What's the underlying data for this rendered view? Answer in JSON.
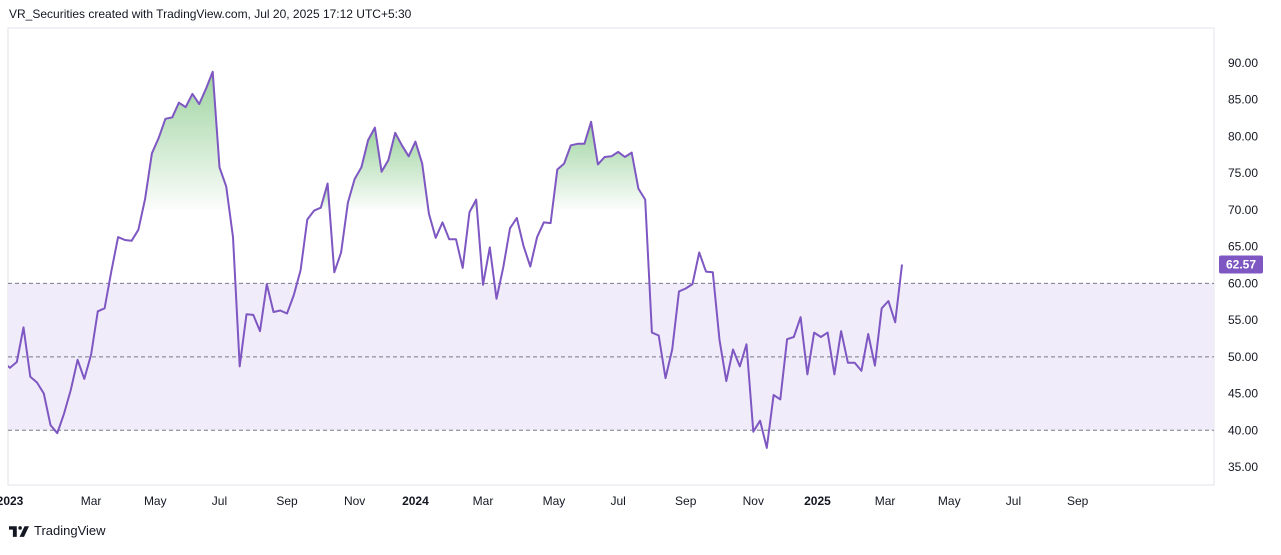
{
  "header": {
    "attribution": "VR_Securities created with TradingView.com, Jul 20, 2025 17:12 UTC+5:30"
  },
  "footer": {
    "brand": "TradingView"
  },
  "colors": {
    "line": "#7e57c2",
    "band_fill": "#f1ecf9",
    "overbought_fill": "#4caf50",
    "level_line": "#787b86",
    "grid_border": "#e0e3eb",
    "last_value_bg": "#7e57c2",
    "text": "#131722"
  },
  "chart_data": {
    "type": "line",
    "title": "",
    "xlabel": "",
    "ylabel": "",
    "ylim": [
      33,
      94
    ],
    "y_ticks": [
      "35.00",
      "40.00",
      "45.00",
      "50.00",
      "55.00",
      "60.00",
      "65.00",
      "70.00",
      "75.00",
      "80.00",
      "85.00",
      "90.00"
    ],
    "levels": [
      40,
      50,
      60
    ],
    "band": [
      40,
      60
    ],
    "overbought_threshold": 70,
    "last_value": 62.57,
    "last_value_label": "62.57",
    "x_range": [
      0,
      173
    ],
    "x_ticks": [
      {
        "label": "2023",
        "x": 0,
        "bold": true
      },
      {
        "label": "Mar",
        "x": 12,
        "bold": false
      },
      {
        "label": "May",
        "x": 21.5,
        "bold": false
      },
      {
        "label": "Jul",
        "x": 31,
        "bold": false
      },
      {
        "label": "Sep",
        "x": 41,
        "bold": false
      },
      {
        "label": "Nov",
        "x": 51,
        "bold": false
      },
      {
        "label": "2024",
        "x": 60,
        "bold": true
      },
      {
        "label": "Mar",
        "x": 70,
        "bold": false
      },
      {
        "label": "May",
        "x": 80.5,
        "bold": false
      },
      {
        "label": "Jul",
        "x": 90,
        "bold": false
      },
      {
        "label": "Sep",
        "x": 100,
        "bold": false
      },
      {
        "label": "Nov",
        "x": 110,
        "bold": false
      },
      {
        "label": "2025",
        "x": 119.5,
        "bold": true
      },
      {
        "label": "Mar",
        "x": 129.5,
        "bold": false
      },
      {
        "label": "May",
        "x": 139,
        "bold": false
      },
      {
        "label": "Jul",
        "x": 148.5,
        "bold": false
      },
      {
        "label": "Sep",
        "x": 158,
        "bold": false
      }
    ],
    "series": [
      {
        "values": [
          [
            -1,
            49.2
          ],
          [
            0,
            48.5
          ],
          [
            1,
            49.3
          ],
          [
            2,
            54.0
          ],
          [
            3,
            47.3
          ],
          [
            4,
            46.5
          ],
          [
            5,
            45.0
          ],
          [
            6,
            40.7
          ],
          [
            7,
            39.6
          ],
          [
            8,
            42.3
          ],
          [
            9,
            45.5
          ],
          [
            10,
            49.6
          ],
          [
            11,
            47.0
          ],
          [
            12,
            50.3
          ],
          [
            13,
            56.2
          ],
          [
            14,
            56.6
          ],
          [
            15,
            61.7
          ],
          [
            16,
            66.3
          ],
          [
            17,
            65.9
          ],
          [
            18,
            65.8
          ],
          [
            19,
            67.3
          ],
          [
            20,
            71.5
          ],
          [
            21,
            77.7
          ],
          [
            22,
            79.8
          ],
          [
            23,
            82.4
          ],
          [
            24,
            82.6
          ],
          [
            25,
            84.6
          ],
          [
            26,
            84.0
          ],
          [
            27,
            85.8
          ],
          [
            28,
            84.4
          ],
          [
            29,
            86.5
          ],
          [
            30,
            88.8
          ],
          [
            31,
            75.8
          ],
          [
            32,
            73.2
          ],
          [
            33,
            66.3
          ],
          [
            34,
            48.7
          ],
          [
            35,
            55.8
          ],
          [
            36,
            55.7
          ],
          [
            37,
            53.5
          ],
          [
            38,
            59.9
          ],
          [
            39,
            56.1
          ],
          [
            40,
            56.3
          ],
          [
            41,
            55.9
          ],
          [
            42,
            58.4
          ],
          [
            43,
            61.8
          ],
          [
            44,
            68.7
          ],
          [
            45,
            69.9
          ],
          [
            46,
            70.3
          ],
          [
            47,
            73.6
          ],
          [
            48,
            61.5
          ],
          [
            49,
            64.2
          ],
          [
            50,
            71.0
          ],
          [
            51,
            74.2
          ],
          [
            52,
            75.8
          ],
          [
            53,
            79.5
          ],
          [
            54,
            81.2
          ],
          [
            55,
            75.2
          ],
          [
            56,
            76.8
          ],
          [
            57,
            80.5
          ],
          [
            58,
            78.8
          ],
          [
            59,
            77.3
          ],
          [
            60,
            79.3
          ],
          [
            61,
            76.3
          ],
          [
            62,
            69.5
          ],
          [
            63,
            66.2
          ],
          [
            64,
            68.3
          ],
          [
            65,
            66.0
          ],
          [
            66,
            66.0
          ],
          [
            67,
            62.1
          ],
          [
            68,
            69.7
          ],
          [
            69,
            71.4
          ],
          [
            70,
            59.8
          ],
          [
            71,
            64.9
          ],
          [
            72,
            57.9
          ],
          [
            73,
            62.2
          ],
          [
            74,
            67.5
          ],
          [
            75,
            68.9
          ],
          [
            76,
            65.1
          ],
          [
            77,
            62.3
          ],
          [
            78,
            66.3
          ],
          [
            79,
            68.3
          ],
          [
            80,
            68.2
          ],
          [
            81,
            75.5
          ],
          [
            82,
            76.3
          ],
          [
            83,
            78.8
          ],
          [
            84,
            79.0
          ],
          [
            85,
            79.0
          ],
          [
            86,
            82.0
          ],
          [
            87,
            76.2
          ],
          [
            88,
            77.2
          ],
          [
            89,
            77.3
          ],
          [
            90,
            77.9
          ],
          [
            91,
            77.2
          ],
          [
            92,
            77.8
          ],
          [
            93,
            72.9
          ],
          [
            94,
            71.4
          ],
          [
            95,
            53.3
          ],
          [
            96,
            52.9
          ],
          [
            97,
            47.1
          ],
          [
            98,
            51.0
          ],
          [
            99,
            58.9
          ],
          [
            100,
            59.3
          ],
          [
            101,
            59.9
          ],
          [
            102,
            64.2
          ],
          [
            103,
            61.6
          ],
          [
            104,
            61.5
          ],
          [
            105,
            52.3
          ],
          [
            106,
            46.7
          ],
          [
            107,
            51.0
          ],
          [
            108,
            48.7
          ],
          [
            109,
            51.7
          ],
          [
            110,
            39.8
          ],
          [
            111,
            41.3
          ],
          [
            112,
            37.6
          ],
          [
            113,
            44.8
          ],
          [
            114,
            44.2
          ],
          [
            115,
            52.4
          ],
          [
            116,
            52.7
          ],
          [
            117,
            55.4
          ],
          [
            118,
            47.6
          ],
          [
            119,
            53.3
          ],
          [
            120,
            52.7
          ],
          [
            121,
            53.3
          ],
          [
            122,
            47.6
          ],
          [
            123,
            53.5
          ],
          [
            124,
            49.2
          ],
          [
            125,
            49.2
          ],
          [
            126,
            48.1
          ],
          [
            127,
            53.1
          ],
          [
            128,
            48.8
          ],
          [
            129,
            56.6
          ],
          [
            130,
            57.6
          ],
          [
            131,
            54.7
          ],
          [
            132,
            62.57
          ]
        ]
      }
    ]
  }
}
